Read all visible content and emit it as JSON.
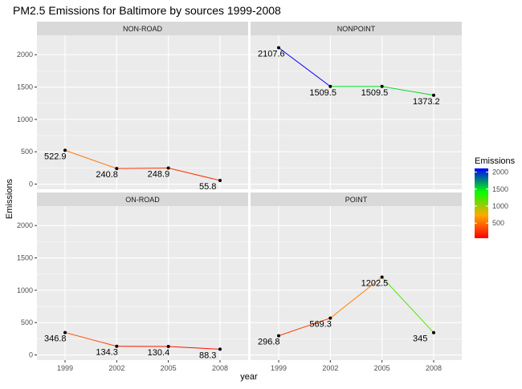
{
  "chart_data": {
    "type": "line",
    "title": "PM2.5 Emissions for Baltimore by sources 1999-2008",
    "xlabel": "year",
    "ylabel": "Emissions",
    "x": [
      1999,
      2002,
      2005,
      2008
    ],
    "x_tick_labels": [
      "1999",
      "2002",
      "2005",
      "2008"
    ],
    "ylim": [
      -80,
      2300
    ],
    "y_ticks": [
      0,
      500,
      1000,
      1500,
      2000
    ],
    "y_tick_labels": [
      "0",
      "500",
      "1000",
      "1500",
      "2000"
    ],
    "grid": true,
    "facets": [
      {
        "name": "NON-ROAD",
        "values": [
          522.9,
          240.8,
          248.9,
          55.8
        ],
        "labels": [
          "522.9",
          "240.8",
          "248.9",
          "55.8"
        ]
      },
      {
        "name": "NONPOINT",
        "values": [
          2107.6,
          1509.5,
          1509.5,
          1373.2
        ],
        "labels": [
          "2107.6",
          "1509.5",
          "1509.5",
          "1373.2"
        ]
      },
      {
        "name": "ON-ROAD",
        "values": [
          346.8,
          134.3,
          130.4,
          88.3
        ],
        "labels": [
          "346.8",
          "134.3",
          "130.4",
          "88.3"
        ]
      },
      {
        "name": "POINT",
        "values": [
          296.8,
          569.3,
          1202.5,
          345
        ],
        "labels": [
          "296.8",
          "569.3",
          "1202.5",
          "345"
        ]
      }
    ],
    "legend": {
      "title": "Emissions",
      "placement": "right",
      "ticks": [
        500,
        1000,
        1500,
        2000
      ],
      "tick_labels": [
        "500",
        "1000",
        "1500",
        "2000"
      ],
      "range": [
        55.8,
        2107.6
      ],
      "colors": [
        "#ff0000",
        "#ffaa00",
        "#00ff00",
        "#0000ff"
      ]
    },
    "colors": {
      "panel_background": "#ebebeb",
      "strip_background": "#d9d9d9",
      "grid": "#ffffff",
      "point": "#000000"
    }
  }
}
